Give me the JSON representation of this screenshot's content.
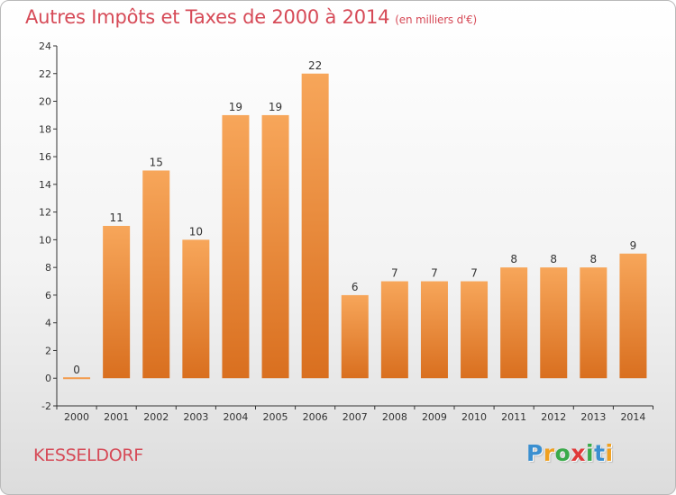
{
  "title": "Autres Impôts et Taxes de 2000 à 2014",
  "subtitle": "(en milliers d'€)",
  "commune": "KESSELDORF",
  "logo": {
    "letters": [
      "P",
      "r",
      "o",
      "x",
      "i",
      "t",
      "i"
    ],
    "colors": [
      "#3a8fd0",
      "#f0a020",
      "#3aaa4a",
      "#e03a3a",
      "#3aaa4a",
      "#3a8fd0",
      "#f0a020"
    ]
  },
  "colors": {
    "title": "#d64a57",
    "bar_top": "#f7a65a",
    "bar_bottom": "#d96f1f",
    "axis": "#333333",
    "zero_bar": "#f29a4a"
  },
  "chart_data": {
    "type": "bar",
    "title": "Autres Impôts et Taxes de 2000 à 2014",
    "subtitle": "(en milliers d'€)",
    "categories": [
      "2000",
      "2001",
      "2002",
      "2003",
      "2004",
      "2005",
      "2006",
      "2007",
      "2008",
      "2009",
      "2010",
      "2011",
      "2012",
      "2013",
      "2014"
    ],
    "values": [
      0,
      11,
      15,
      10,
      19,
      19,
      22,
      6,
      7,
      7,
      7,
      8,
      8,
      8,
      9
    ],
    "ylim": [
      -2,
      24
    ],
    "yticks": [
      -2,
      0,
      2,
      4,
      6,
      8,
      10,
      12,
      14,
      16,
      18,
      20,
      22,
      24
    ],
    "xlabel": "",
    "ylabel": "",
    "grid": false,
    "data_labels": true
  }
}
